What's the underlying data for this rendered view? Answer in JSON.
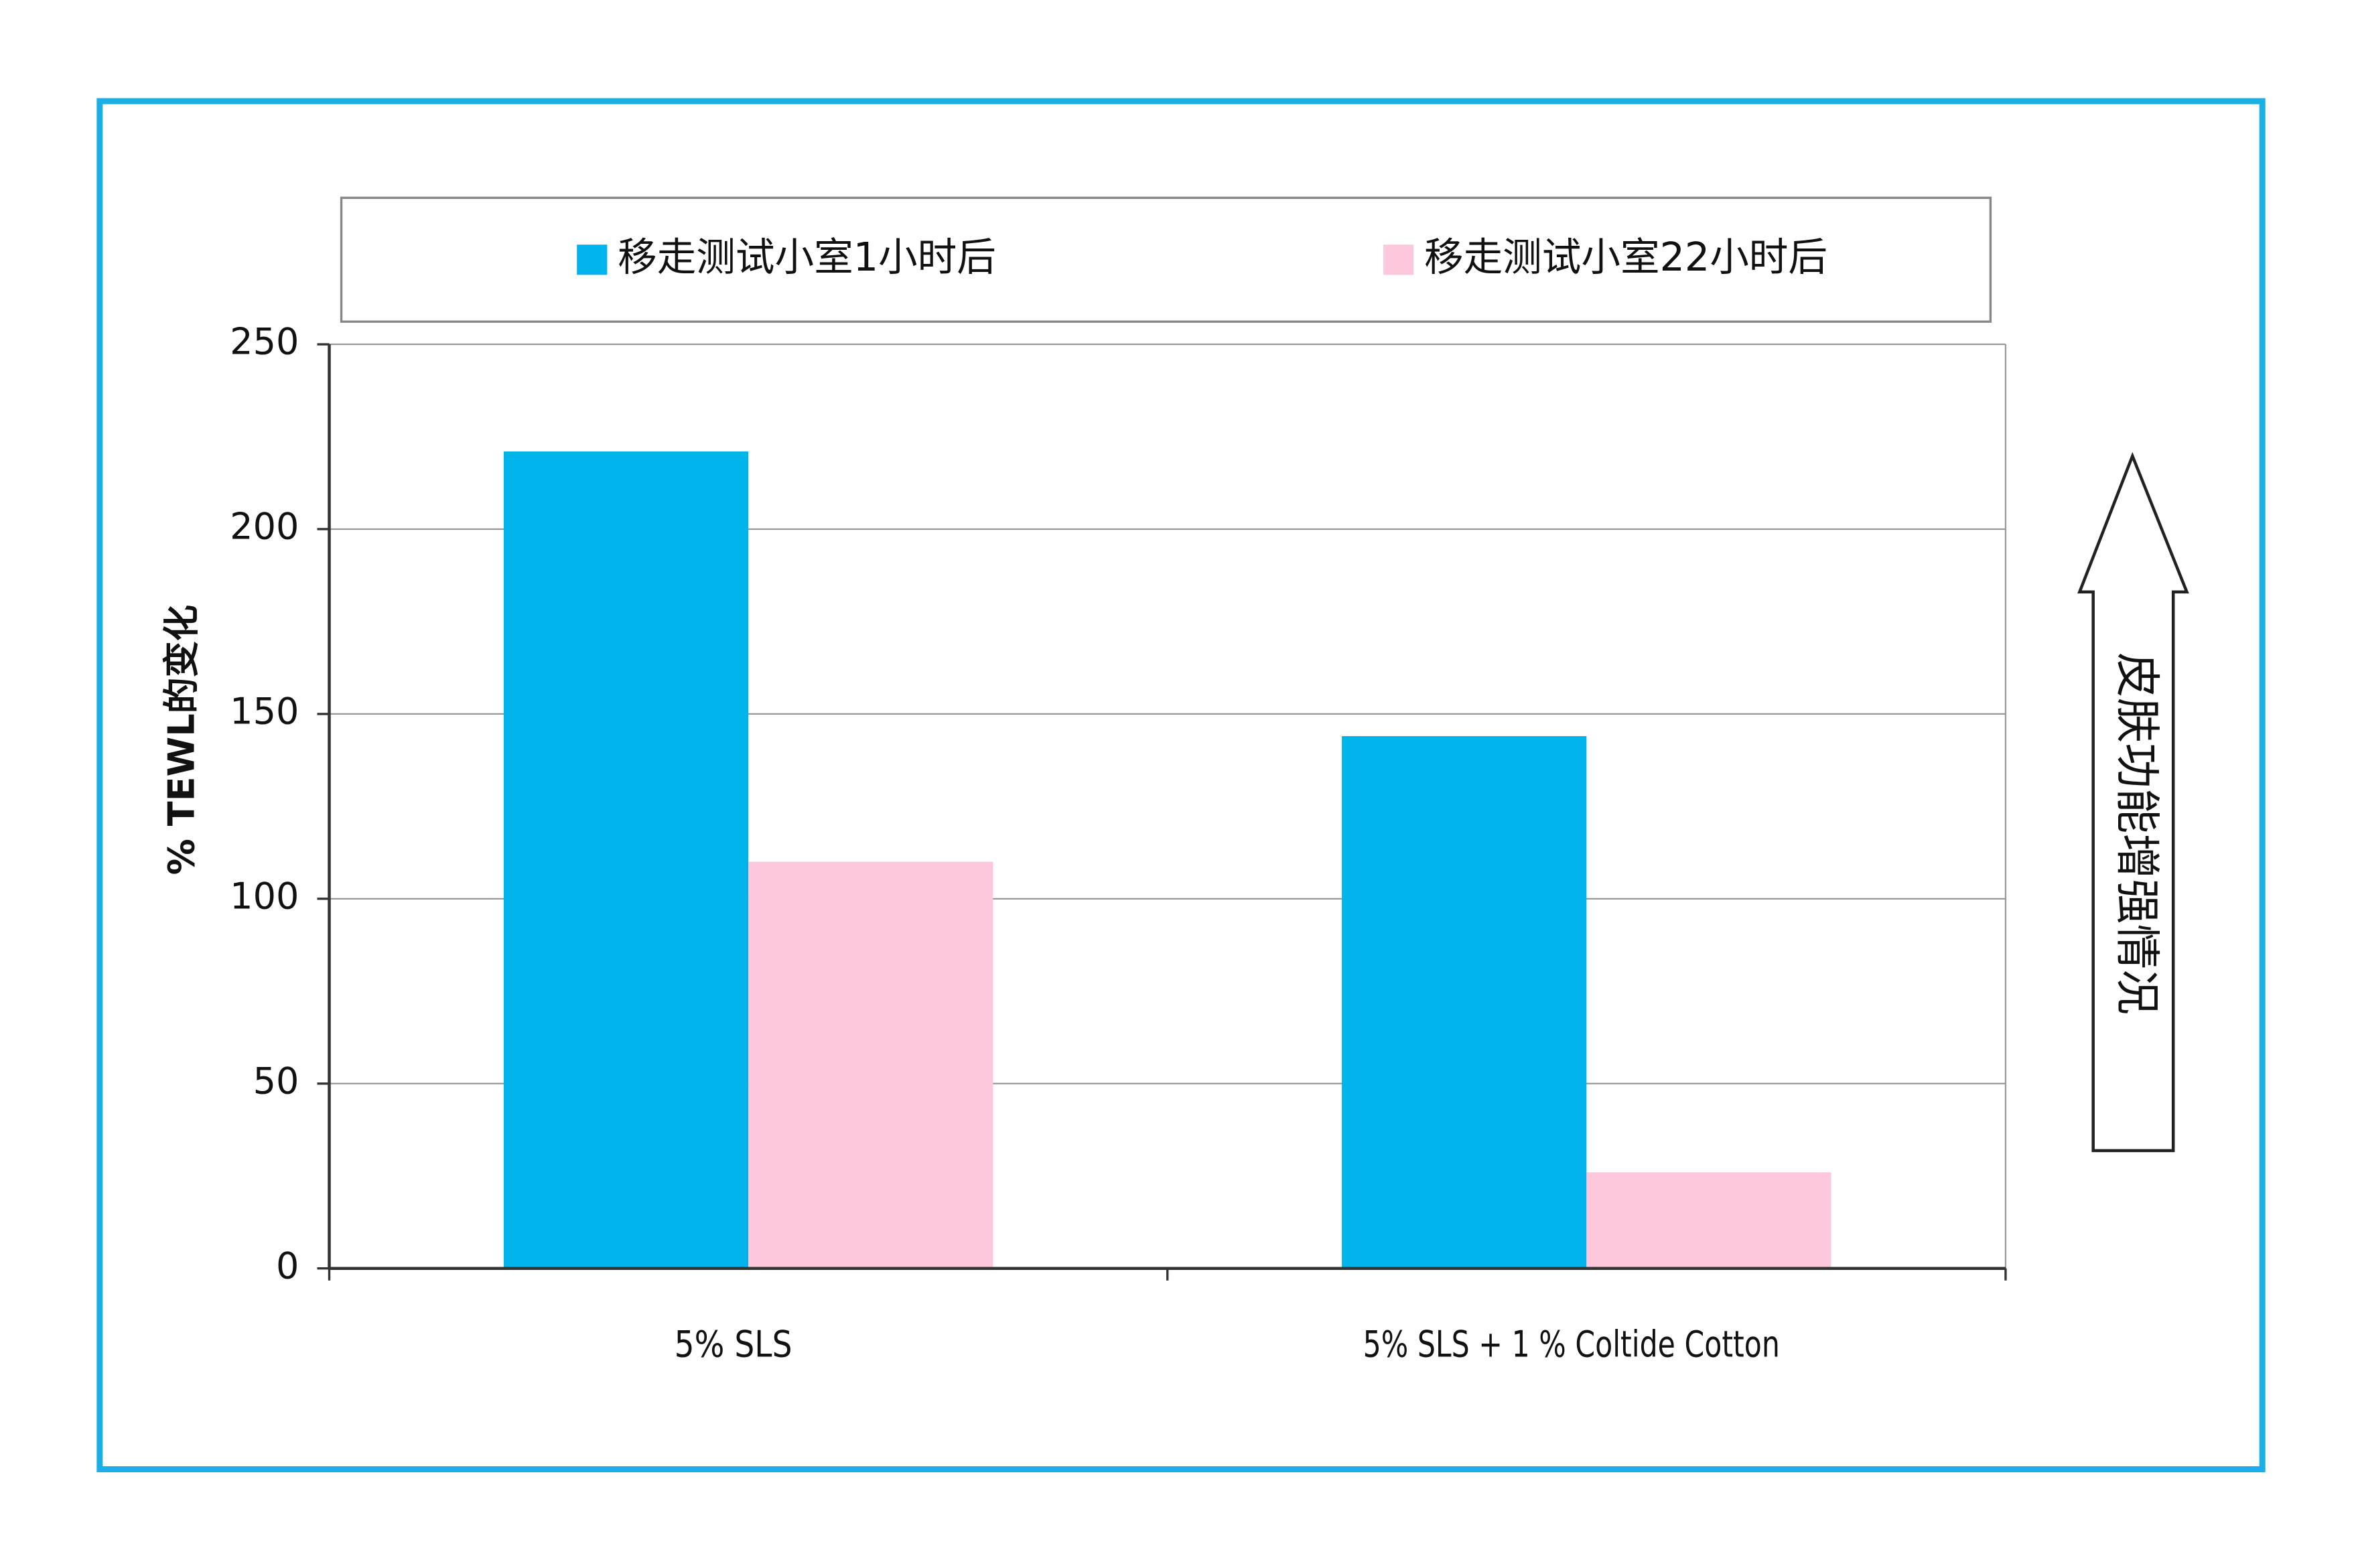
{
  "chart_data": {
    "type": "bar",
    "y_label": "% TEWL的变化",
    "annotation": "皮肤功能增强情况",
    "categories": [
      "5% SLS",
      "5% SLS + 1 % Coltide Cotton"
    ],
    "series": [
      {
        "name": "移走测试小室1小时后",
        "color": "#00b4eb",
        "values": [
          221,
          144
        ]
      },
      {
        "name": "移走测试小室22小时后",
        "color": "#fdc8dc",
        "values": [
          110,
          26
        ]
      }
    ],
    "ylim": [
      0,
      250
    ],
    "yticks": [
      0,
      50,
      100,
      150,
      200,
      250
    ],
    "grid": true,
    "legend": "top"
  }
}
